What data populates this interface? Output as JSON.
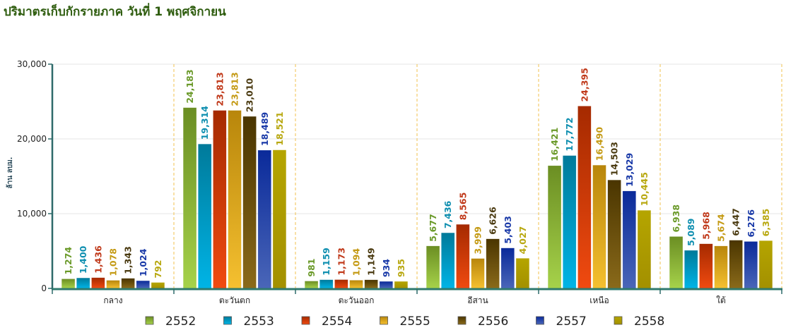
{
  "title": "ปริมาตรเก็บกักรายภาค วันที่ 1 พฤศจิกายน",
  "chart_data": {
    "type": "bar",
    "title": "ปริมาตรเก็บกักรายภาค วันที่ 1 พฤศจิกายน",
    "xlabel": "",
    "ylabel": "ล้าน ลบม.",
    "ylim": [
      0,
      30000
    ],
    "yticks": [
      0,
      10000,
      20000,
      30000
    ],
    "ytick_labels": [
      "0",
      "10,000",
      "20,000",
      "30,000"
    ],
    "grid": true,
    "legend_position": "bottom",
    "categories": [
      "กลาง",
      "ตะวันตก",
      "ตะวันออก",
      "อีสาน",
      "เหนือ",
      "ใต้"
    ],
    "series": [
      {
        "name": "2552",
        "color_top": "#6b8e23",
        "color_bottom": "#a6d24a",
        "label_color": "#6b9a2a",
        "values": [
          1274,
          24183,
          981,
          5677,
          16421,
          6938
        ],
        "labels": [
          "1,274",
          "24,183",
          "981",
          "5,677",
          "16,421",
          "6,938"
        ]
      },
      {
        "name": "2553",
        "color_top": "#007a9a",
        "color_bottom": "#00b4e6",
        "label_color": "#0f8fb0",
        "values": [
          1400,
          19314,
          1159,
          7436,
          17772,
          5089
        ],
        "labels": [
          "1,400",
          "19,314",
          "1,159",
          "7,436",
          "17,772",
          "5,089"
        ]
      },
      {
        "name": "2554",
        "color_top": "#a52a00",
        "color_bottom": "#f04a10",
        "label_color": "#c0391a",
        "values": [
          1436,
          23813,
          1173,
          8565,
          24395,
          5968
        ],
        "labels": [
          "1,436",
          "23,813",
          "1,173",
          "8,565",
          "24,395",
          "5,968"
        ]
      },
      {
        "name": "2555",
        "color_top": "#b8860b",
        "color_bottom": "#f5c030",
        "label_color": "#c49a14",
        "values": [
          1078,
          23813,
          1094,
          3999,
          16490,
          5674
        ],
        "labels": [
          "1,078",
          "23,813",
          "1,094",
          "3,999",
          "16,490",
          "5,674"
        ]
      },
      {
        "name": "2556",
        "color_top": "#4a3500",
        "color_bottom": "#8a6a1a",
        "label_color": "#4a3a10",
        "values": [
          1343,
          23010,
          1149,
          6626,
          14503,
          6447
        ],
        "labels": [
          "1,343",
          "23,010",
          "1,149",
          "6,626",
          "14,503",
          "6,447"
        ]
      },
      {
        "name": "2557",
        "color_top": "#0a2a9a",
        "color_bottom": "#4a66b8",
        "label_color": "#1a3aa8",
        "values": [
          1024,
          18489,
          934,
          5403,
          13029,
          6276
        ],
        "labels": [
          "1,024",
          "18,489",
          "934",
          "5,403",
          "13,029",
          "6,276"
        ]
      },
      {
        "name": "2558",
        "color_top": "#b5a500",
        "color_bottom": "#a39000",
        "label_color": "#b8a810",
        "values": [
          792,
          18521,
          935,
          4027,
          10445,
          6385
        ],
        "labels": [
          "792",
          "18,521",
          "935",
          "4,027",
          "10,445",
          "6,385"
        ]
      }
    ]
  }
}
